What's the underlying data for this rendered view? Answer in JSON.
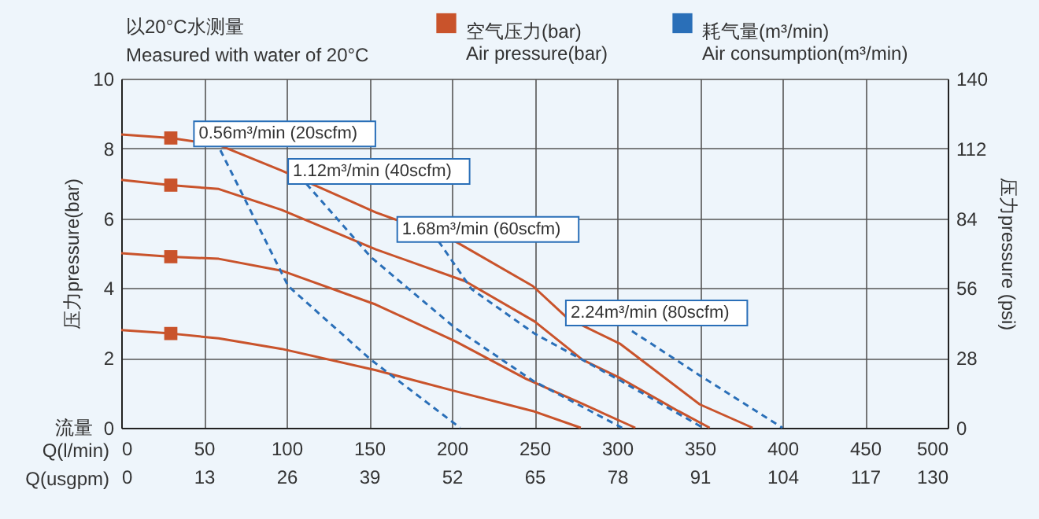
{
  "chart_data": {
    "type": "line",
    "title": "以20°C水测量\nMeasured with water of 20°C",
    "xlabel": "Q(l/min)",
    "ylabel": "压力pressure(bar)",
    "y2label": "压力pressure (psi)",
    "x2label": "Q(usgpm)",
    "xlim": [
      0,
      500
    ],
    "xticks": [
      0,
      50,
      100,
      150,
      200,
      250,
      300,
      350,
      400,
      450,
      500
    ],
    "x2lim": [
      0,
      130
    ],
    "x2ticks": [
      0,
      13,
      26,
      39,
      52,
      65,
      78,
      91,
      104,
      117,
      130
    ],
    "ylim": [
      0,
      10
    ],
    "yticks": [
      0,
      2,
      4,
      6,
      8,
      10
    ],
    "y2lim": [
      0,
      140
    ],
    "y2ticks": [
      0,
      28,
      56,
      84,
      112,
      140
    ],
    "grid": true,
    "legend": "top right",
    "series": [
      {
        "color": "#c9532b",
        "line_style": "solid",
        "x": [
          0,
          30,
          59,
          97,
          154,
          202,
          249,
          270,
          302,
          350,
          382
        ],
        "values": [
          8.4,
          8.3,
          8.1,
          7.37,
          6.17,
          5.34,
          4.06,
          3.14,
          2.4,
          0.67,
          0
        ]
      },
      {
        "color": "#c9532b",
        "line_style": "solid",
        "x": [
          0,
          30,
          59,
          97,
          154,
          208,
          250,
          279,
          302,
          337,
          356
        ],
        "values": [
          7.1,
          6.95,
          6.84,
          6.24,
          5.11,
          4.2,
          3.05,
          1.95,
          1.42,
          0.48,
          0
        ]
      },
      {
        "color": "#c9532b",
        "line_style": "solid",
        "x": [
          0,
          30,
          59,
          97,
          154,
          202,
          245,
          276,
          311
        ],
        "values": [
          5.0,
          4.9,
          4.84,
          4.5,
          3.53,
          2.48,
          1.4,
          0.75,
          0
        ]
      },
      {
        "color": "#c9532b",
        "line_style": "solid",
        "x": [
          0,
          30,
          59,
          97,
          154,
          202,
          249,
          278
        ],
        "values": [
          2.8,
          2.7,
          2.56,
          2.26,
          1.65,
          1.05,
          0.48,
          0
        ]
      },
      {
        "type": "scatter",
        "name": "空气压力(bar)\nAir pressure(bar)",
        "color": "#c9532b",
        "marker": "square",
        "x": [
          30,
          30,
          30,
          30
        ],
        "values": [
          8.3,
          6.95,
          4.9,
          2.7
        ]
      },
      {
        "name": "耗气量(m³/min)\nAir consumption(m³/min)",
        "color": "#2a6fb8",
        "line_style": "dashed",
        "x": [
          60,
          101,
          151,
          205
        ],
        "values": [
          7.95,
          4.06,
          1.95,
          0
        ]
      },
      {
        "color": "#2a6fb8",
        "line_style": "dashed",
        "x": [
          112,
          151,
          202,
          249,
          303
        ],
        "values": [
          6.99,
          4.89,
          2.86,
          1.35,
          0
        ]
      },
      {
        "color": "#2a6fb8",
        "line_style": "dashed",
        "x": [
          192,
          212,
          250,
          302,
          352
        ],
        "values": [
          5.34,
          3.97,
          2.7,
          1.35,
          0
        ]
      },
      {
        "color": "#2a6fb8",
        "line_style": "dashed",
        "x": [
          309,
          350,
          400
        ],
        "values": [
          2.77,
          1.5,
          0
        ]
      }
    ],
    "annotations": [
      {
        "text": "0.56m³/min (20scfm)",
        "x": 44,
        "y": 8.42
      },
      {
        "text": "1.12m³/min (40scfm)",
        "x": 101,
        "y": 7.34
      },
      {
        "text": "1.68m³/min (60scfm)",
        "x": 167,
        "y": 5.68
      },
      {
        "text": "2.24m³/min (80scfm)",
        "x": 269,
        "y": 3.29
      },
      "流量"
    ]
  }
}
